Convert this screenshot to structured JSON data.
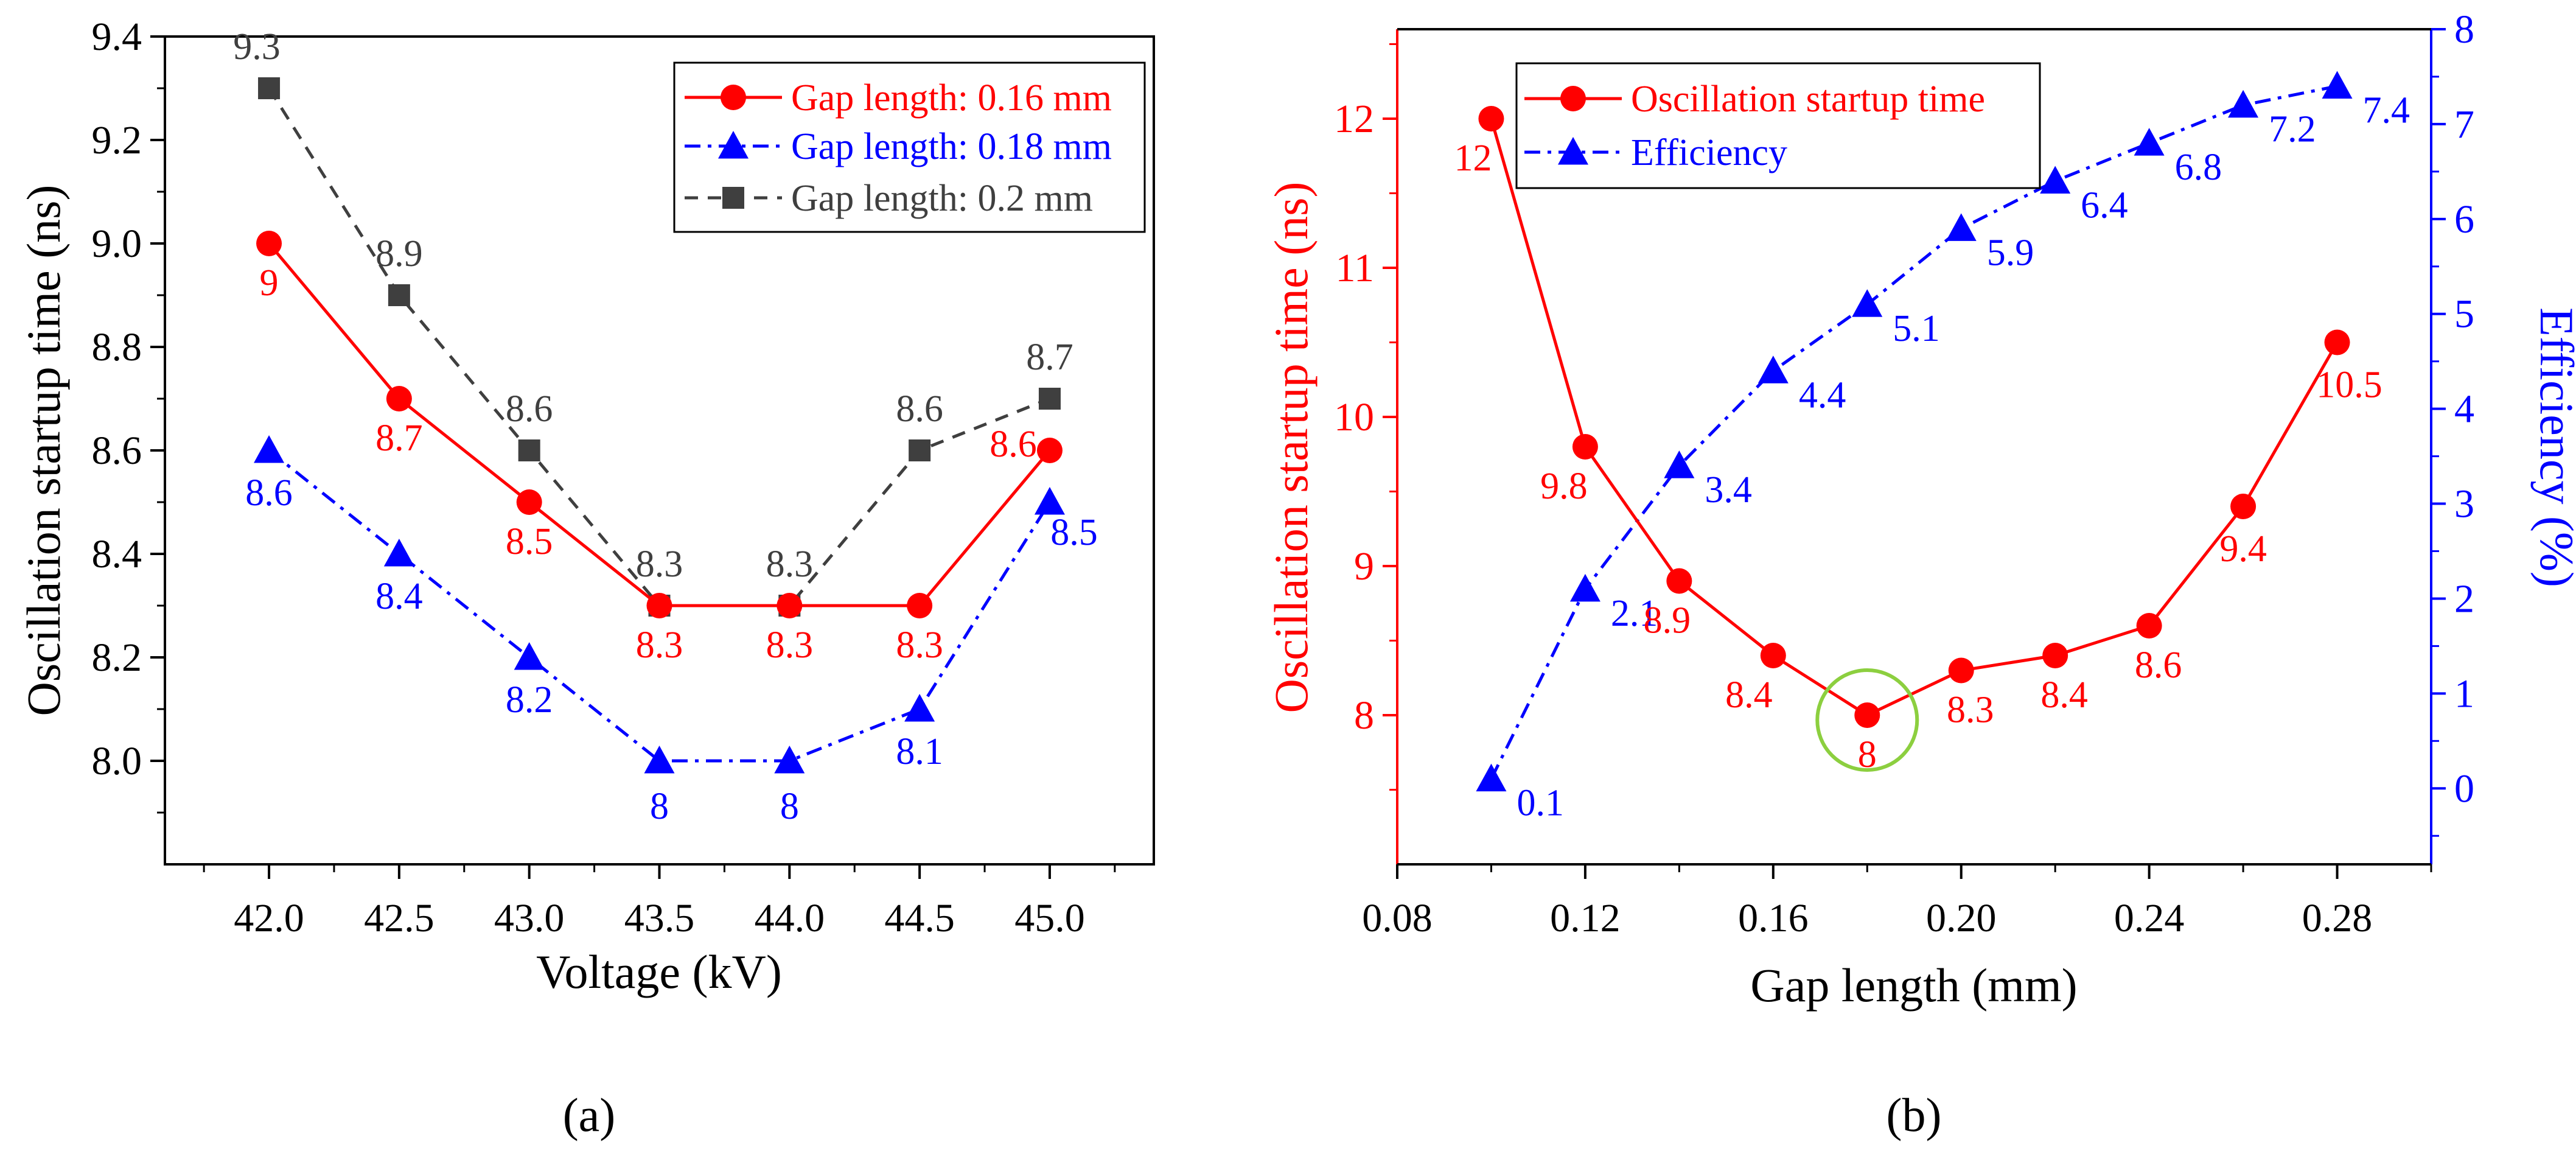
{
  "chart_data": [
    {
      "type": "line",
      "panel_label": "(a)",
      "xlabel": "Voltage (kV)",
      "ylabel": "Oscillation startup time (ns)",
      "x": [
        42.0,
        42.5,
        43.0,
        43.5,
        44.0,
        44.5,
        45.0
      ],
      "x_tick_labels": [
        "42.0",
        "42.5",
        "43.0",
        "43.5",
        "44.0",
        "44.5",
        "45.0"
      ],
      "xlim": [
        41.6,
        45.4
      ],
      "ylim": [
        7.8,
        9.4
      ],
      "y_ticks": [
        8.0,
        8.2,
        8.4,
        8.6,
        8.8,
        9.0,
        9.2,
        9.4
      ],
      "y_tick_labels": [
        "8.0",
        "8.2",
        "8.4",
        "8.6",
        "8.8",
        "9.0",
        "9.2",
        "9.4"
      ],
      "legend_position": "top-right",
      "series": [
        {
          "name": "Gap length: 0.16 mm",
          "color": "#ff0000",
          "marker": "circle",
          "line_style": "solid",
          "values": [
            9.0,
            8.7,
            8.5,
            8.3,
            8.3,
            8.3,
            8.6
          ],
          "labels": [
            "9",
            "8.7",
            "8.5",
            "8.3",
            "8.3",
            "8.3",
            "8.6"
          ]
        },
        {
          "name": "Gap length: 0.18 mm",
          "color": "#0000ff",
          "marker": "triangle",
          "line_style": "dash-dot",
          "values": [
            8.6,
            8.4,
            8.2,
            8.0,
            8.0,
            8.1,
            8.5
          ],
          "labels": [
            "8.6",
            "8.4",
            "8.2",
            "8",
            "8",
            "8.1",
            "8.5"
          ]
        },
        {
          "name": "Gap length: 0.2 mm",
          "color": "#3f3f3f",
          "marker": "square",
          "line_style": "dashed",
          "values": [
            9.3,
            8.9,
            8.6,
            8.3,
            8.3,
            8.6,
            8.7
          ],
          "labels": [
            "9.3",
            "8.9",
            "8.6",
            "8.3",
            "8.3",
            "8.6",
            "8.7"
          ]
        }
      ]
    },
    {
      "type": "line",
      "panel_label": "(b)",
      "xlabel": "Gap length (mm)",
      "ylabel": "Oscillation startup time (ns)",
      "y2label": "Efficiency (%)",
      "x": [
        0.1,
        0.12,
        0.14,
        0.16,
        0.18,
        0.2,
        0.22,
        0.24,
        0.26,
        0.28
      ],
      "xlim": [
        0.08,
        0.3
      ],
      "x_ticks": [
        0.08,
        0.12,
        0.16,
        0.2,
        0.24,
        0.28
      ],
      "x_tick_labels": [
        "0.08",
        "0.12",
        "0.16",
        "0.20",
        "0.24",
        "0.28"
      ],
      "ylim": [
        7.0,
        12.6
      ],
      "y_ticks": [
        8,
        9,
        10,
        11,
        12
      ],
      "y_tick_labels": [
        "8",
        "9",
        "10",
        "11",
        "12"
      ],
      "y2lim": [
        -0.8,
        8.0
      ],
      "y2_ticks": [
        0,
        1,
        2,
        3,
        4,
        5,
        6,
        7,
        8
      ],
      "y2_tick_labels": [
        "0",
        "1",
        "2",
        "3",
        "4",
        "5",
        "6",
        "7",
        "8"
      ],
      "legend_position": "top-left",
      "highlight": {
        "x": 0.18,
        "y": 8.0,
        "color": "#8ccf3f",
        "note": "circled minimum"
      },
      "series": [
        {
          "name": "Oscillation startup time",
          "axis": "left",
          "color": "#ff0000",
          "marker": "circle",
          "line_style": "solid",
          "values": [
            12,
            9.8,
            8.9,
            8.4,
            8.0,
            8.3,
            8.4,
            8.6,
            9.4,
            10.5
          ],
          "labels": [
            "12",
            "9.8",
            "8.9",
            "8.4",
            "8",
            "8.3",
            "8.4",
            "8.6",
            "9.4",
            "10.5"
          ]
        },
        {
          "name": "Efficiency",
          "axis": "right",
          "color": "#0000ff",
          "marker": "triangle",
          "line_style": "dash-dot",
          "values": [
            0.1,
            2.1,
            3.4,
            4.4,
            5.1,
            5.9,
            6.4,
            6.8,
            7.2,
            7.4
          ],
          "labels": [
            "0.1",
            "2.1",
            "3.4",
            "4.4",
            "5.1",
            "5.9",
            "6.4",
            "6.8",
            "7.2",
            "7.4"
          ]
        }
      ]
    }
  ]
}
